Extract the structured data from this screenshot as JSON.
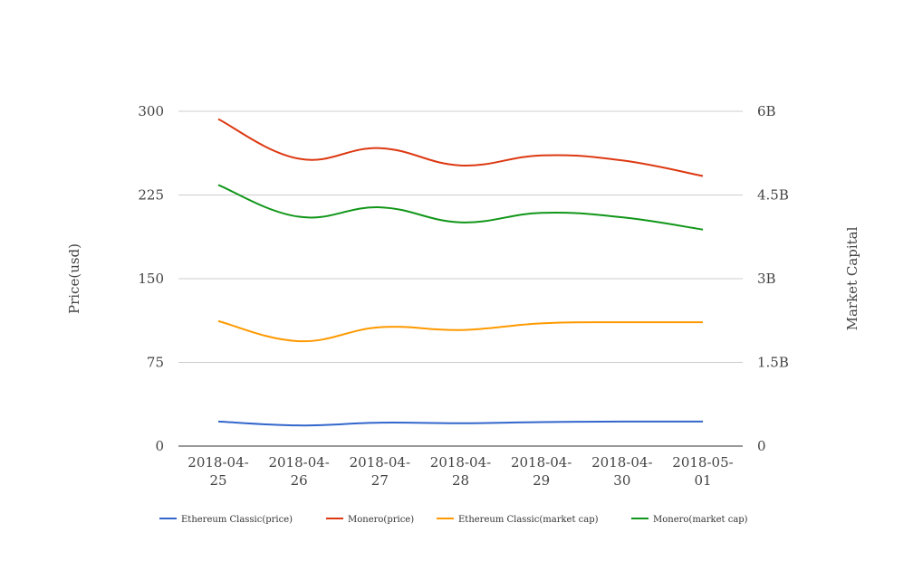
{
  "chart_data": {
    "type": "line",
    "categories": [
      "2018-04-25",
      "2018-04-26",
      "2018-04-27",
      "2018-04-28",
      "2018-04-29",
      "2018-04-30",
      "2018-05-01"
    ],
    "category_labels": [
      [
        "2018-04-",
        "25"
      ],
      [
        "2018-04-",
        "26"
      ],
      [
        "2018-04-",
        "27"
      ],
      [
        "2018-04-",
        "28"
      ],
      [
        "2018-04-",
        "29"
      ],
      [
        "2018-04-",
        "30"
      ],
      [
        "2018-05-",
        "01"
      ]
    ],
    "ylabel": "Price(usd)",
    "y2label": "Market Capital",
    "ylim": [
      0,
      300
    ],
    "y2lim": [
      0,
      6000000000
    ],
    "yticks": [
      "0",
      "75",
      "150",
      "225",
      "300"
    ],
    "y2ticks": [
      "0",
      "1.5B",
      "3B",
      "4.5B",
      "6B"
    ],
    "grid": true,
    "legend_position": "bottom",
    "series": [
      {
        "name": "Ethereum Classic(price)",
        "axis": "left",
        "color": "#3366cc",
        "values": [
          22,
          18.5,
          21,
          20.5,
          21.5,
          22,
          22
        ]
      },
      {
        "name": "Monero(price)",
        "axis": "left",
        "color": "#dc3912",
        "values": [
          293,
          257.5,
          267,
          251.5,
          260.5,
          256,
          242
        ]
      },
      {
        "name": "Ethereum Classic(market cap)",
        "axis": "right",
        "color": "#ff9900",
        "values": [
          2240000000,
          1880000000,
          2130000000,
          2080000000,
          2200000000,
          2220000000,
          2220000000
        ]
      },
      {
        "name": "Monero(market cap)",
        "axis": "right",
        "color": "#109618",
        "values": [
          4680000000,
          4110000000,
          4280000000,
          4010000000,
          4180000000,
          4100000000,
          3880000000
        ]
      }
    ]
  }
}
